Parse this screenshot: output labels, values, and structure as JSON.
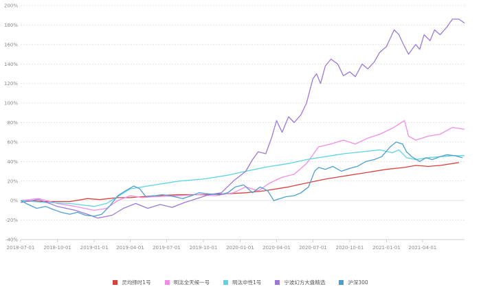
{
  "chart_data": {
    "type": "line",
    "title": "",
    "xlabel": "",
    "ylabel": "",
    "ylim": [
      -40,
      200
    ],
    "y_ticks": [
      "200%",
      "180%",
      "160%",
      "140%",
      "120%",
      "100%",
      "80%",
      "60%",
      "40%",
      "20%",
      "0%",
      "-20%",
      "-40%"
    ],
    "x_ticks": [
      "2018-07-01",
      "2018-10-01",
      "2019-01-01",
      "2019-04-01",
      "2019-07-01",
      "2019-10-01",
      "2020-01-01",
      "2020-04-01",
      "2020-07-01",
      "2020-10-01",
      "2021-01-01",
      "2021-04-01"
    ],
    "x_range": [
      "2018-07-01",
      "2021-07-15"
    ],
    "grid": "horizontal dashed",
    "legend_position": "bottom",
    "series": [
      {
        "name": "灵均择时1号",
        "color": "#d9403a",
        "points": [
          [
            "2018-07-01",
            0
          ],
          [
            "2018-09-01",
            -1
          ],
          [
            "2018-11-01",
            -1
          ],
          [
            "2018-12-15",
            2
          ],
          [
            "2019-01-15",
            1
          ],
          [
            "2019-03-01",
            3
          ],
          [
            "2019-04-01",
            3
          ],
          [
            "2019-06-01",
            5
          ],
          [
            "2019-08-01",
            6
          ],
          [
            "2019-10-01",
            6
          ],
          [
            "2019-12-01",
            7
          ],
          [
            "2020-01-15",
            8
          ],
          [
            "2020-03-01",
            10
          ],
          [
            "2020-05-01",
            14
          ],
          [
            "2020-06-15",
            18
          ],
          [
            "2020-08-01",
            22
          ],
          [
            "2020-09-15",
            25
          ],
          [
            "2020-11-01",
            28
          ],
          [
            "2021-01-01",
            32
          ],
          [
            "2021-02-15",
            34
          ],
          [
            "2021-03-15",
            36
          ],
          [
            "2021-04-15",
            35
          ],
          [
            "2021-05-15",
            36
          ],
          [
            "2021-07-01",
            39
          ]
        ]
      },
      {
        "name": "明汯全天候一号",
        "color": "#f08ce6",
        "points": [
          [
            "2018-07-01",
            0
          ],
          [
            "2018-08-15",
            2
          ],
          [
            "2018-10-01",
            -3
          ],
          [
            "2018-11-15",
            -6
          ],
          [
            "2019-01-01",
            -10
          ],
          [
            "2019-02-01",
            -8
          ],
          [
            "2019-03-01",
            0
          ],
          [
            "2019-04-01",
            5
          ],
          [
            "2019-05-01",
            3
          ],
          [
            "2019-06-01",
            4
          ],
          [
            "2019-08-01",
            5
          ],
          [
            "2019-09-15",
            6
          ],
          [
            "2019-11-01",
            5
          ],
          [
            "2019-12-15",
            8
          ],
          [
            "2020-01-15",
            14
          ],
          [
            "2020-02-15",
            10
          ],
          [
            "2020-03-15",
            18
          ],
          [
            "2020-04-15",
            24
          ],
          [
            "2020-05-15",
            27
          ],
          [
            "2020-06-15",
            38
          ],
          [
            "2020-07-15",
            55
          ],
          [
            "2020-08-15",
            58
          ],
          [
            "2020-09-15",
            62
          ],
          [
            "2020-10-15",
            58
          ],
          [
            "2020-11-15",
            64
          ],
          [
            "2020-12-15",
            68
          ],
          [
            "2021-01-15",
            74
          ],
          [
            "2021-02-15",
            82
          ],
          [
            "2021-02-25",
            66
          ],
          [
            "2021-03-15",
            62
          ],
          [
            "2021-04-15",
            66
          ],
          [
            "2021-05-15",
            68
          ],
          [
            "2021-06-15",
            75
          ],
          [
            "2021-07-15",
            73
          ]
        ]
      },
      {
        "name": "明汯中性1号",
        "color": "#5bd4e4",
        "points": [
          [
            "2018-07-01",
            0
          ],
          [
            "2018-09-01",
            -2
          ],
          [
            "2018-11-01",
            -3
          ],
          [
            "2019-01-01",
            -6
          ],
          [
            "2019-02-01",
            -3
          ],
          [
            "2019-03-01",
            4
          ],
          [
            "2019-04-01",
            12
          ],
          [
            "2019-05-01",
            14
          ],
          [
            "2019-06-01",
            16
          ],
          [
            "2019-08-01",
            20
          ],
          [
            "2019-10-01",
            22
          ],
          [
            "2019-12-01",
            26
          ],
          [
            "2020-01-15",
            30
          ],
          [
            "2020-03-01",
            34
          ],
          [
            "2020-05-01",
            38
          ],
          [
            "2020-06-15",
            42
          ],
          [
            "2020-08-01",
            45
          ],
          [
            "2020-09-15",
            48
          ],
          [
            "2020-11-01",
            50
          ],
          [
            "2020-12-15",
            52
          ],
          [
            "2021-01-15",
            49
          ],
          [
            "2021-02-01",
            52
          ],
          [
            "2021-02-20",
            44
          ],
          [
            "2021-03-15",
            42
          ],
          [
            "2021-04-15",
            44
          ],
          [
            "2021-05-15",
            45
          ],
          [
            "2021-06-15",
            46
          ],
          [
            "2021-07-15",
            46
          ]
        ]
      },
      {
        "name": "宁波幻方大盘精选",
        "color": "#9b78d8",
        "points": [
          [
            "2018-07-01",
            -2
          ],
          [
            "2018-08-15",
            1
          ],
          [
            "2018-10-01",
            -6
          ],
          [
            "2018-11-15",
            -10
          ],
          [
            "2018-12-15",
            -14
          ],
          [
            "2019-01-10",
            -18
          ],
          [
            "2019-02-15",
            -15
          ],
          [
            "2019-03-15",
            -8
          ],
          [
            "2019-04-15",
            -3
          ],
          [
            "2019-05-15",
            -8
          ],
          [
            "2019-06-15",
            -4
          ],
          [
            "2019-07-15",
            -7
          ],
          [
            "2019-08-15",
            -2
          ],
          [
            "2019-09-15",
            2
          ],
          [
            "2019-10-15",
            6
          ],
          [
            "2019-11-15",
            8
          ],
          [
            "2019-12-15",
            20
          ],
          [
            "2020-01-15",
            30
          ],
          [
            "2020-02-01",
            42
          ],
          [
            "2020-02-15",
            50
          ],
          [
            "2020-03-05",
            48
          ],
          [
            "2020-03-20",
            65
          ],
          [
            "2020-04-01",
            82
          ],
          [
            "2020-04-15",
            70
          ],
          [
            "2020-05-01",
            86
          ],
          [
            "2020-05-15",
            80
          ],
          [
            "2020-06-01",
            88
          ],
          [
            "2020-06-15",
            100
          ],
          [
            "2020-07-01",
            125
          ],
          [
            "2020-07-10",
            130
          ],
          [
            "2020-07-20",
            120
          ],
          [
            "2020-08-01",
            138
          ],
          [
            "2020-08-15",
            145
          ],
          [
            "2020-09-01",
            140
          ],
          [
            "2020-09-15",
            128
          ],
          [
            "2020-10-01",
            132
          ],
          [
            "2020-10-15",
            127
          ],
          [
            "2020-11-01",
            140
          ],
          [
            "2020-11-15",
            135
          ],
          [
            "2020-12-01",
            142
          ],
          [
            "2020-12-15",
            152
          ],
          [
            "2021-01-01",
            158
          ],
          [
            "2021-01-20",
            175
          ],
          [
            "2021-02-01",
            170
          ],
          [
            "2021-02-10",
            162
          ],
          [
            "2021-02-25",
            150
          ],
          [
            "2021-03-15",
            160
          ],
          [
            "2021-03-25",
            155
          ],
          [
            "2021-04-05",
            170
          ],
          [
            "2021-04-20",
            164
          ],
          [
            "2021-05-01",
            175
          ],
          [
            "2021-05-15",
            170
          ],
          [
            "2021-06-01",
            178
          ],
          [
            "2021-06-15",
            186
          ],
          [
            "2021-07-01",
            186
          ],
          [
            "2021-07-15",
            182
          ]
        ]
      },
      {
        "name": "沪深300",
        "color": "#4a9fd0",
        "points": [
          [
            "2018-07-01",
            0
          ],
          [
            "2018-07-20",
            -4
          ],
          [
            "2018-08-10",
            -8
          ],
          [
            "2018-09-01",
            -6
          ],
          [
            "2018-09-20",
            -9
          ],
          [
            "2018-10-10",
            -12
          ],
          [
            "2018-11-01",
            -14
          ],
          [
            "2018-11-20",
            -12
          ],
          [
            "2018-12-10",
            -15
          ],
          [
            "2019-01-01",
            -16
          ],
          [
            "2019-01-20",
            -14
          ],
          [
            "2019-02-10",
            -5
          ],
          [
            "2019-03-01",
            5
          ],
          [
            "2019-03-20",
            10
          ],
          [
            "2019-04-10",
            15
          ],
          [
            "2019-04-25",
            12
          ],
          [
            "2019-05-10",
            4
          ],
          [
            "2019-06-01",
            5
          ],
          [
            "2019-06-20",
            6
          ],
          [
            "2019-07-10",
            5
          ],
          [
            "2019-08-10",
            2
          ],
          [
            "2019-09-01",
            5
          ],
          [
            "2019-09-20",
            8
          ],
          [
            "2019-10-10",
            7
          ],
          [
            "2019-11-10",
            6
          ],
          [
            "2019-12-01",
            8
          ],
          [
            "2019-12-20",
            14
          ],
          [
            "2020-01-10",
            16
          ],
          [
            "2020-02-01",
            8
          ],
          [
            "2020-02-20",
            14
          ],
          [
            "2020-03-10",
            10
          ],
          [
            "2020-03-25",
            0
          ],
          [
            "2020-04-10",
            2
          ],
          [
            "2020-04-25",
            4
          ],
          [
            "2020-05-15",
            5
          ],
          [
            "2020-06-01",
            8
          ],
          [
            "2020-06-20",
            14
          ],
          [
            "2020-07-05",
            30
          ],
          [
            "2020-07-15",
            34
          ],
          [
            "2020-08-01",
            32
          ],
          [
            "2020-08-20",
            35
          ],
          [
            "2020-09-10",
            30
          ],
          [
            "2020-10-01",
            33
          ],
          [
            "2020-10-20",
            35
          ],
          [
            "2020-11-10",
            40
          ],
          [
            "2020-12-01",
            42
          ],
          [
            "2020-12-20",
            45
          ],
          [
            "2021-01-10",
            55
          ],
          [
            "2021-01-25",
            60
          ],
          [
            "2021-02-10",
            58
          ],
          [
            "2021-02-20",
            50
          ],
          [
            "2021-03-05",
            45
          ],
          [
            "2021-03-25",
            40
          ],
          [
            "2021-04-10",
            44
          ],
          [
            "2021-04-25",
            42
          ],
          [
            "2021-05-15",
            45
          ],
          [
            "2021-06-01",
            47
          ],
          [
            "2021-06-20",
            46
          ],
          [
            "2021-07-10",
            44
          ]
        ]
      }
    ]
  }
}
